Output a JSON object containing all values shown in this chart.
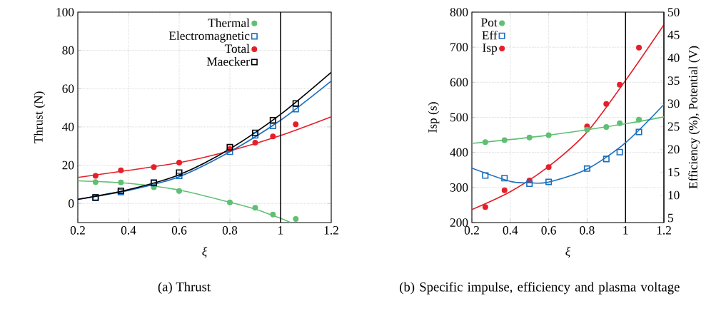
{
  "chart_data": [
    {
      "type": "scatter",
      "title": "(a) Thrust",
      "xlabel": "ξ",
      "ylabel": "Thrust (N)",
      "x": [
        0.27,
        0.37,
        0.5,
        0.6,
        0.8,
        0.9,
        0.97,
        1.06
      ],
      "series": [
        {
          "name": "Thermal",
          "color": "#5fbf73",
          "marker": "circle",
          "values": [
            11.2,
            11,
            8.5,
            6.5,
            0.5,
            -2.3,
            -5.8,
            -8.1
          ]
        },
        {
          "name": "Electromagnetic",
          "color": "#1a6fbf",
          "marker": "square",
          "values": [
            3,
            6,
            10.6,
            14.4,
            27,
            35.6,
            40.5,
            49.3
          ]
        },
        {
          "name": "Total",
          "color": "#e3202a",
          "marker": "circle",
          "values": [
            14.4,
            17.3,
            19,
            21.3,
            28.4,
            31.8,
            35,
            41.4
          ]
        },
        {
          "name": "Maecker",
          "color": "#000000",
          "marker": "square",
          "values": [
            3.1,
            6.6,
            10.9,
            16.1,
            29.4,
            36.9,
            43.5,
            52.3
          ]
        },
        {
          "type": "line",
          "color": "#5fbf73",
          "marker": "none",
          "x": [
            0.2,
            0.4,
            0.6,
            0.8,
            0.9,
            1.0,
            1.04
          ],
          "values": [
            11.8,
            10.5,
            7,
            0.6,
            -3,
            -7.8,
            -10
          ]
        },
        {
          "type": "line",
          "color": "#1a6fbf",
          "marker": "none",
          "x": [
            0.2,
            0.4,
            0.6,
            0.8,
            1.0,
            1.2
          ],
          "values": [
            2.2,
            6.8,
            14,
            27,
            43.5,
            64
          ]
        },
        {
          "type": "line",
          "color": "#e3202a",
          "marker": "none",
          "x": [
            0.2,
            0.4,
            0.6,
            0.8,
            1.0,
            1.2
          ],
          "values": [
            13.6,
            17.3,
            21.3,
            27.5,
            35.5,
            45.3
          ]
        },
        {
          "type": "line",
          "color": "#000000",
          "marker": "none",
          "x": [
            0.2,
            0.4,
            0.6,
            0.8,
            1.0,
            1.2
          ],
          "values": [
            2.1,
            7.2,
            15,
            28.5,
            46.5,
            68.5
          ]
        }
      ],
      "xlim": [
        0.2,
        1.2
      ],
      "xticks": [
        0.2,
        0.4,
        0.6,
        0.8,
        1,
        1.2
      ],
      "ylim": [
        -10,
        100
      ],
      "yticks": [
        0,
        20,
        40,
        60,
        80,
        100
      ],
      "ref_lines": [
        {
          "axis": "x",
          "value": 1,
          "color": "#000000"
        }
      ],
      "grid": true,
      "legend": "top"
    },
    {
      "type": "scatter",
      "title": "(b) Specific impulse, efficiency and plasma voltage",
      "xlabel": "ξ",
      "ylabel": "Isp (s)",
      "y2label": "Efficiency (%), Potential (V)",
      "x": [
        0.27,
        0.37,
        0.5,
        0.6,
        0.8,
        0.9,
        0.97,
        1.07
      ],
      "series": [
        {
          "name": "Pot",
          "color": "#5fbf73",
          "marker": "circle",
          "axis": "y2",
          "values": [
            21.6,
            22,
            22.6,
            23.1,
            24.3,
            24.9,
            25.7,
            26.5
          ]
        },
        {
          "name": "Eff",
          "color": "#1a6fbf",
          "marker": "square",
          "axis": "y2",
          "values": [
            14.3,
            13.7,
            12.5,
            12.9,
            15.8,
            17.9,
            19.4,
            23.8
          ]
        },
        {
          "name": "Isp",
          "color": "#e3202a",
          "marker": "circle",
          "values": [
            244,
            292,
            320,
            358,
            474,
            538,
            593,
            699
          ]
        },
        {
          "type": "line",
          "color": "#5fbf73",
          "marker": "none",
          "axis": "y2",
          "x": [
            0.2,
            0.6,
            1.0,
            1.2
          ],
          "values": [
            21.3,
            23.1,
            25.6,
            27.1
          ]
        },
        {
          "type": "line",
          "color": "#1a6fbf",
          "marker": "none",
          "axis": "y2",
          "x": [
            0.2,
            0.4,
            0.5,
            0.6,
            0.8,
            1.0,
            1.2
          ],
          "values": [
            15.9,
            13,
            12.7,
            12.85,
            15.7,
            21.45,
            29.8
          ]
        },
        {
          "type": "line",
          "color": "#e3202a",
          "marker": "none",
          "x": [
            0.2,
            0.4,
            0.6,
            0.8,
            1.0,
            1.2
          ],
          "values": [
            237,
            288,
            360,
            458,
            605,
            764
          ]
        }
      ],
      "xlim": [
        0.2,
        1.2
      ],
      "xticks": [
        0.2,
        0.4,
        0.6,
        0.8,
        1,
        1.2
      ],
      "ylim": [
        200,
        800
      ],
      "yticks": [
        200,
        300,
        400,
        500,
        600,
        700,
        800
      ],
      "y2lim": [
        4,
        50
      ],
      "y2ticks": [
        5,
        10,
        15,
        20,
        25,
        30,
        35,
        40,
        45,
        50
      ],
      "ref_lines": [
        {
          "axis": "x",
          "value": 1,
          "color": "#000000"
        }
      ],
      "grid": true,
      "legend": "top left"
    }
  ]
}
